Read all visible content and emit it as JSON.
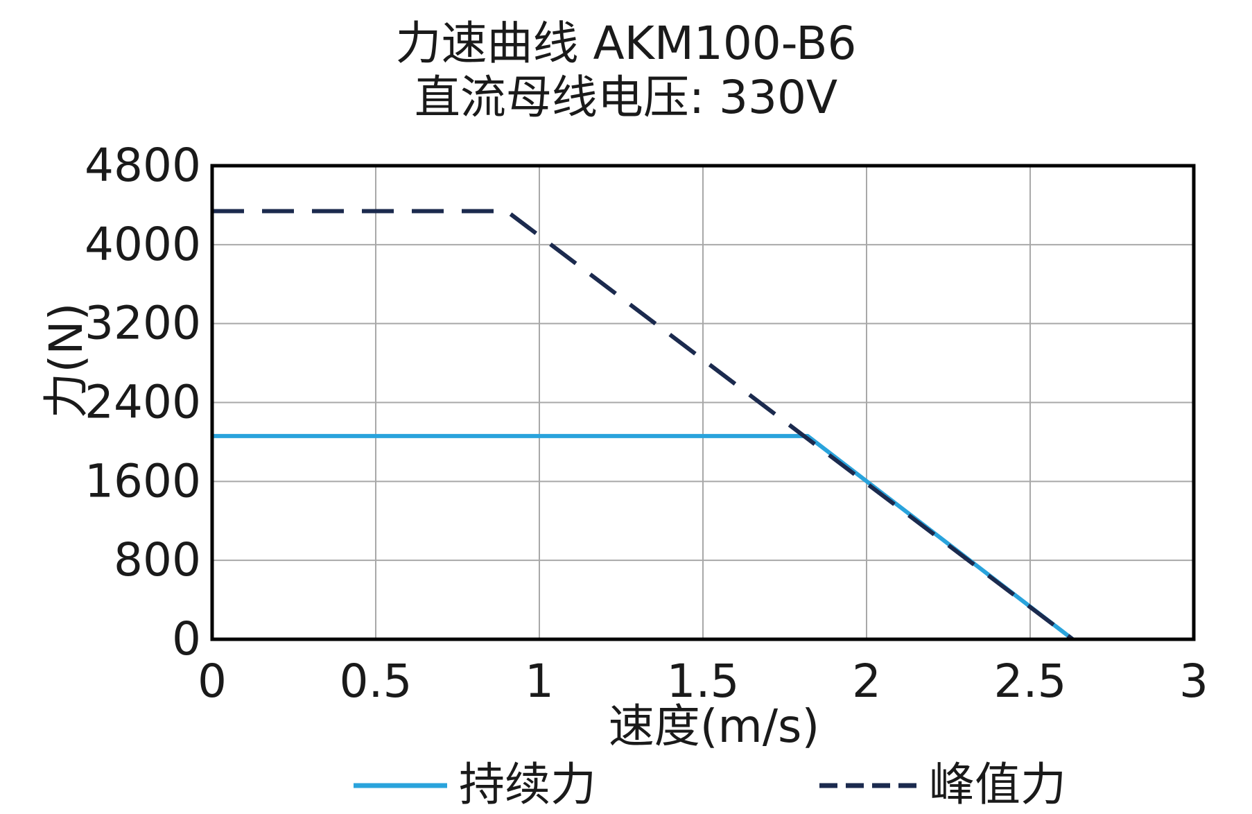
{
  "chart_data": {
    "type": "line",
    "title": "力速曲线 AKM100-B6",
    "subtitle": "直流母线电压: 330V",
    "xlabel": "速度(m/s)",
    "ylabel": "力(N)",
    "xlim": [
      0,
      3
    ],
    "ylim": [
      0,
      4800
    ],
    "x_ticks": [
      "0",
      "0.5",
      "1",
      "1.5",
      "2",
      "2.5",
      "3"
    ],
    "y_ticks": [
      "0",
      "800",
      "1600",
      "2400",
      "3200",
      "4000",
      "4800"
    ],
    "grid": true,
    "legend_position": "bottom",
    "series": [
      {
        "name": "持续力",
        "style": "solid",
        "color": "#29a3dc",
        "x": [
          0,
          1.82,
          2.63
        ],
        "y": [
          2060,
          2060,
          0
        ]
      },
      {
        "name": "峰值力",
        "style": "dashed",
        "color": "#1b2a4e",
        "x": [
          0,
          0.9,
          2.63
        ],
        "y": [
          4340,
          4340,
          0
        ]
      }
    ]
  }
}
